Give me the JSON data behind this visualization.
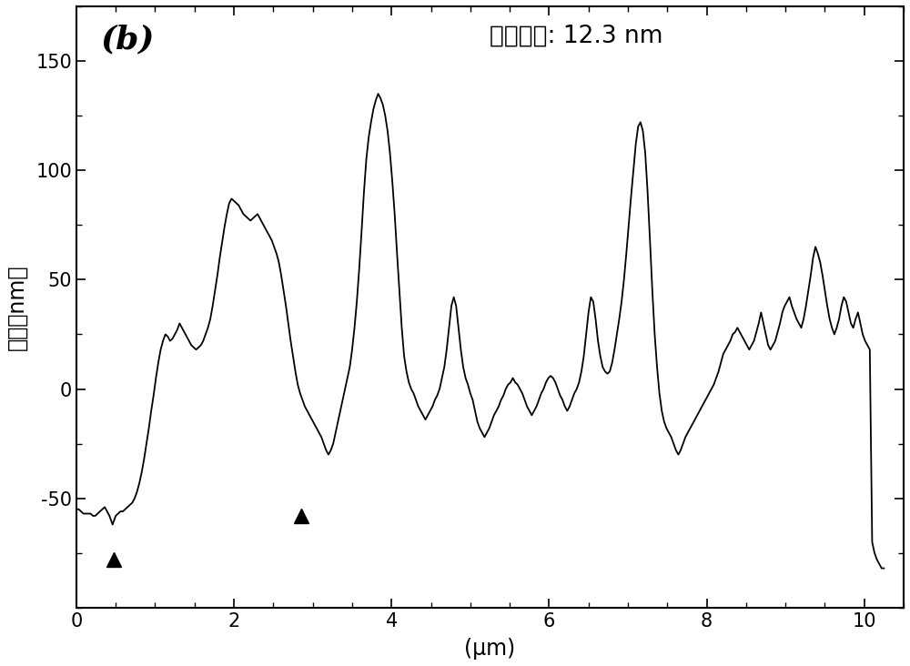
{
  "title_label": "(b)",
  "annotation": "囊壁厄度: 12.3 nm",
  "xlabel": "(μm)",
  "ylabel": "高度（nm）",
  "xlim": [
    0,
    10.5
  ],
  "ylim": [
    -100,
    175
  ],
  "yticks": [
    -50,
    0,
    50,
    100,
    150
  ],
  "xticks": [
    0,
    2,
    4,
    6,
    8,
    10
  ],
  "line_color": "#000000",
  "background_color": "#ffffff",
  "marker1_x": 0.47,
  "marker1_y": -78,
  "marker2_x": 2.85,
  "marker2_y": -58,
  "x": [
    0.0,
    0.03,
    0.06,
    0.09,
    0.12,
    0.15,
    0.18,
    0.21,
    0.24,
    0.27,
    0.3,
    0.33,
    0.36,
    0.39,
    0.42,
    0.44,
    0.46,
    0.48,
    0.5,
    0.53,
    0.56,
    0.59,
    0.62,
    0.65,
    0.68,
    0.71,
    0.74,
    0.77,
    0.8,
    0.83,
    0.86,
    0.89,
    0.92,
    0.95,
    0.98,
    1.01,
    1.04,
    1.07,
    1.1,
    1.13,
    1.16,
    1.19,
    1.22,
    1.25,
    1.28,
    1.31,
    1.34,
    1.37,
    1.4,
    1.43,
    1.46,
    1.49,
    1.52,
    1.55,
    1.58,
    1.61,
    1.64,
    1.67,
    1.7,
    1.73,
    1.76,
    1.79,
    1.82,
    1.85,
    1.88,
    1.91,
    1.94,
    1.97,
    2.0,
    2.03,
    2.06,
    2.09,
    2.12,
    2.15,
    2.18,
    2.21,
    2.24,
    2.27,
    2.3,
    2.33,
    2.36,
    2.39,
    2.42,
    2.45,
    2.48,
    2.51,
    2.54,
    2.57,
    2.6,
    2.63,
    2.66,
    2.69,
    2.72,
    2.75,
    2.78,
    2.81,
    2.84,
    2.87,
    2.9,
    2.93,
    2.96,
    2.99,
    3.02,
    3.05,
    3.08,
    3.11,
    3.14,
    3.17,
    3.2,
    3.23,
    3.26,
    3.29,
    3.32,
    3.35,
    3.38,
    3.41,
    3.44,
    3.47,
    3.5,
    3.53,
    3.56,
    3.59,
    3.62,
    3.65,
    3.68,
    3.71,
    3.74,
    3.77,
    3.8,
    3.83,
    3.86,
    3.89,
    3.92,
    3.95,
    3.98,
    4.01,
    4.04,
    4.07,
    4.1,
    4.13,
    4.16,
    4.19,
    4.22,
    4.25,
    4.28,
    4.31,
    4.34,
    4.37,
    4.4,
    4.43,
    4.46,
    4.49,
    4.52,
    4.55,
    4.58,
    4.61,
    4.64,
    4.67,
    4.7,
    4.73,
    4.76,
    4.79,
    4.82,
    4.85,
    4.88,
    4.91,
    4.94,
    4.97,
    5.0,
    5.03,
    5.06,
    5.09,
    5.12,
    5.15,
    5.18,
    5.21,
    5.24,
    5.27,
    5.3,
    5.33,
    5.36,
    5.39,
    5.42,
    5.45,
    5.48,
    5.51,
    5.54,
    5.57,
    5.6,
    5.63,
    5.66,
    5.69,
    5.72,
    5.75,
    5.78,
    5.81,
    5.84,
    5.87,
    5.9,
    5.93,
    5.96,
    5.99,
    6.02,
    6.05,
    6.08,
    6.11,
    6.14,
    6.17,
    6.2,
    6.23,
    6.26,
    6.29,
    6.32,
    6.35,
    6.38,
    6.41,
    6.44,
    6.47,
    6.5,
    6.53,
    6.56,
    6.59,
    6.62,
    6.65,
    6.68,
    6.71,
    6.74,
    6.77,
    6.8,
    6.83,
    6.86,
    6.89,
    6.92,
    6.95,
    6.98,
    7.01,
    7.04,
    7.07,
    7.1,
    7.13,
    7.16,
    7.19,
    7.22,
    7.25,
    7.28,
    7.31,
    7.34,
    7.37,
    7.4,
    7.43,
    7.46,
    7.49,
    7.52,
    7.55,
    7.58,
    7.61,
    7.64,
    7.67,
    7.7,
    7.73,
    7.76,
    7.79,
    7.82,
    7.85,
    7.88,
    7.91,
    7.94,
    7.97,
    8.0,
    8.03,
    8.06,
    8.09,
    8.12,
    8.15,
    8.18,
    8.21,
    8.24,
    8.27,
    8.3,
    8.33,
    8.36,
    8.39,
    8.42,
    8.45,
    8.48,
    8.51,
    8.54,
    8.57,
    8.6,
    8.63,
    8.66,
    8.69,
    8.72,
    8.75,
    8.78,
    8.81,
    8.84,
    8.87,
    8.9,
    8.93,
    8.96,
    8.99,
    9.02,
    9.05,
    9.08,
    9.11,
    9.14,
    9.17,
    9.2,
    9.23,
    9.26,
    9.29,
    9.32,
    9.35,
    9.38,
    9.41,
    9.44,
    9.47,
    9.5,
    9.53,
    9.56,
    9.59,
    9.62,
    9.65,
    9.68,
    9.71,
    9.74,
    9.77,
    9.8,
    9.83,
    9.86,
    9.89,
    9.92,
    9.95,
    9.98,
    10.01,
    10.04,
    10.07,
    10.1,
    10.13,
    10.16,
    10.19,
    10.22,
    10.25
  ],
  "y": [
    -55,
    -55,
    -56,
    -57,
    -57,
    -57,
    -57,
    -58,
    -58,
    -57,
    -56,
    -55,
    -54,
    -56,
    -58,
    -60,
    -62,
    -60,
    -58,
    -57,
    -56,
    -56,
    -55,
    -54,
    -53,
    -52,
    -50,
    -47,
    -43,
    -38,
    -32,
    -25,
    -18,
    -10,
    -3,
    5,
    12,
    18,
    22,
    25,
    24,
    22,
    23,
    25,
    27,
    30,
    28,
    26,
    24,
    22,
    20,
    19,
    18,
    19,
    20,
    22,
    25,
    28,
    32,
    38,
    45,
    52,
    60,
    67,
    74,
    80,
    85,
    87,
    86,
    85,
    84,
    82,
    80,
    79,
    78,
    77,
    78,
    79,
    80,
    78,
    76,
    74,
    72,
    70,
    68,
    65,
    62,
    58,
    52,
    45,
    38,
    30,
    22,
    15,
    8,
    2,
    -2,
    -5,
    -8,
    -10,
    -12,
    -14,
    -16,
    -18,
    -20,
    -22,
    -25,
    -28,
    -30,
    -28,
    -25,
    -20,
    -15,
    -10,
    -5,
    0,
    5,
    10,
    18,
    28,
    40,
    55,
    72,
    90,
    105,
    115,
    122,
    128,
    132,
    135,
    133,
    130,
    125,
    118,
    108,
    95,
    80,
    62,
    45,
    28,
    15,
    8,
    3,
    0,
    -2,
    -5,
    -8,
    -10,
    -12,
    -14,
    -12,
    -10,
    -8,
    -5,
    -3,
    0,
    5,
    10,
    18,
    28,
    38,
    42,
    38,
    28,
    18,
    10,
    5,
    2,
    -2,
    -5,
    -10,
    -15,
    -18,
    -20,
    -22,
    -20,
    -18,
    -15,
    -12,
    -10,
    -8,
    -5,
    -3,
    0,
    2,
    3,
    5,
    3,
    2,
    0,
    -2,
    -5,
    -8,
    -10,
    -12,
    -10,
    -8,
    -5,
    -2,
    0,
    3,
    5,
    6,
    5,
    3,
    0,
    -3,
    -5,
    -8,
    -10,
    -8,
    -5,
    -2,
    0,
    3,
    8,
    15,
    25,
    35,
    42,
    40,
    32,
    22,
    15,
    10,
    8,
    7,
    8,
    12,
    18,
    25,
    32,
    40,
    50,
    62,
    75,
    88,
    100,
    112,
    120,
    122,
    118,
    108,
    90,
    68,
    45,
    25,
    10,
    -2,
    -10,
    -15,
    -18,
    -20,
    -22,
    -25,
    -28,
    -30,
    -28,
    -25,
    -22,
    -20,
    -18,
    -16,
    -14,
    -12,
    -10,
    -8,
    -6,
    -4,
    -2,
    0,
    2,
    5,
    8,
    12,
    16,
    18,
    20,
    22,
    25,
    26,
    28,
    26,
    24,
    22,
    20,
    18,
    20,
    22,
    26,
    30,
    35,
    30,
    25,
    20,
    18,
    20,
    22,
    26,
    30,
    35,
    38,
    40,
    42,
    38,
    35,
    32,
    30,
    28,
    32,
    38,
    45,
    52,
    60,
    65,
    62,
    58,
    52,
    45,
    38,
    32,
    28,
    25,
    28,
    32,
    38,
    42,
    40,
    35,
    30,
    28,
    32,
    35,
    30,
    25,
    22,
    20,
    18,
    -70,
    -75,
    -78,
    -80,
    -82,
    -82
  ]
}
